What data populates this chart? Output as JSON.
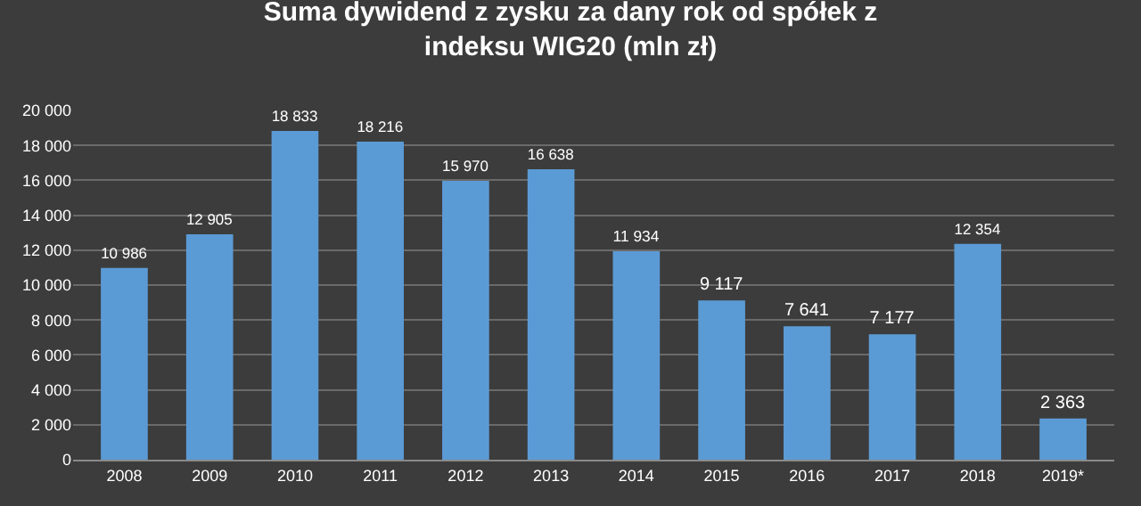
{
  "chart_data": {
    "type": "bar",
    "title": "Suma dywidend z zysku za dany rok od spółek z indeksu WIG20 (mln zł)",
    "categories": [
      "2008",
      "2009",
      "2010",
      "2011",
      "2012",
      "2013",
      "2014",
      "2015",
      "2016",
      "2017",
      "2018",
      "2019*"
    ],
    "values": [
      10986,
      12905,
      18833,
      18216,
      15970,
      16638,
      11934,
      9117,
      7641,
      7177,
      12354,
      2363
    ],
    "value_labels": [
      "10 986",
      "12 905",
      "18 833",
      "18 216",
      "15 970",
      "16 638",
      "11 934",
      "9 117",
      "7 641",
      "7 177",
      "12 354",
      "2 363"
    ],
    "color": "#5b9bd5",
    "ylim": [
      0,
      20000
    ],
    "yticks": [
      0,
      {
        "value": 2000,
        "label": "2 000"
      },
      {
        "value": 4000,
        "label": "4 000"
      },
      {
        "value": 6000,
        "label": "6 000"
      },
      {
        "value": 8000,
        "label": "8 000"
      },
      {
        "value": 10000,
        "label": "10 000"
      },
      {
        "value": 12000,
        "label": "12 000"
      },
      {
        "value": 14000,
        "label": "14 000"
      },
      {
        "value": 16000,
        "label": "16 000"
      },
      {
        "value": 18000,
        "label": "18 000"
      },
      {
        "value": 20000,
        "label": "20 000"
      }
    ],
    "grid": "y"
  }
}
